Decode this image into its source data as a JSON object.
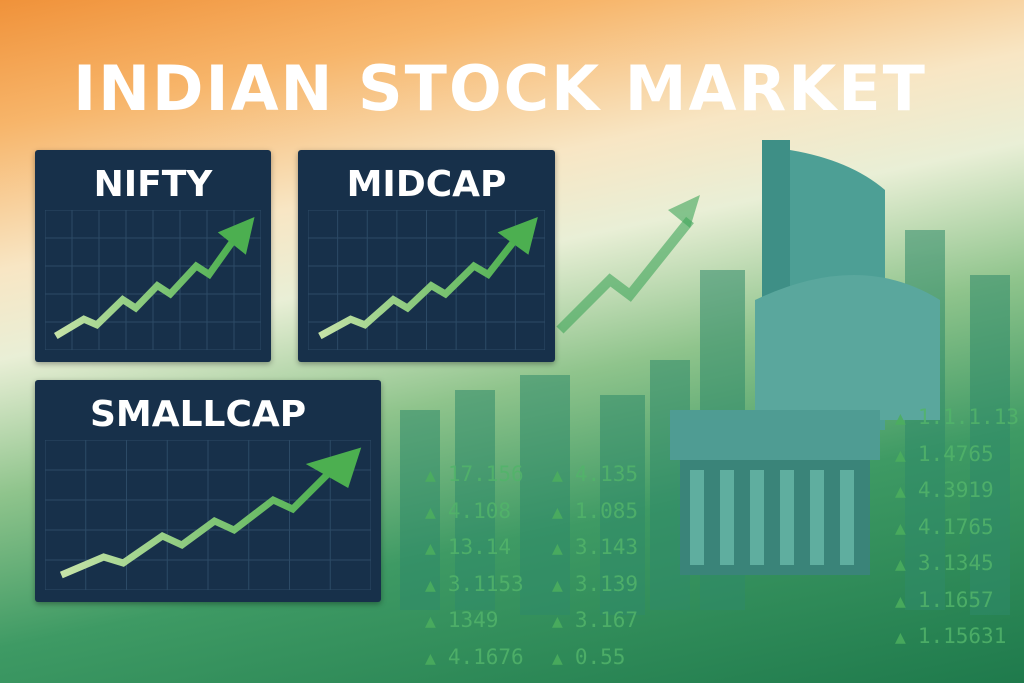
{
  "title": "INDIAN STOCK MARKET",
  "panels": [
    {
      "label": "NIFTY"
    },
    {
      "label": "MIDCAP"
    },
    {
      "label": "SMALLCAP"
    }
  ],
  "tickers": {
    "col1": [
      "17.156",
      "4.108",
      "13.14",
      "3.1153",
      "1349",
      "4.1676"
    ],
    "col2": [
      "4.135",
      "1.085",
      "3.143",
      "3.139",
      "3.167",
      "0.55"
    ],
    "col3": [
      "1.1.1.13",
      "1.4765",
      "4.3919",
      "4.1765",
      "3.1345",
      "1.1657",
      "1.15631"
    ]
  },
  "icons": {
    "up": "triangle-up-icon"
  },
  "colors": {
    "panel": "#17304a",
    "arrow": "#4caf50",
    "ticker": "#52b46a"
  }
}
